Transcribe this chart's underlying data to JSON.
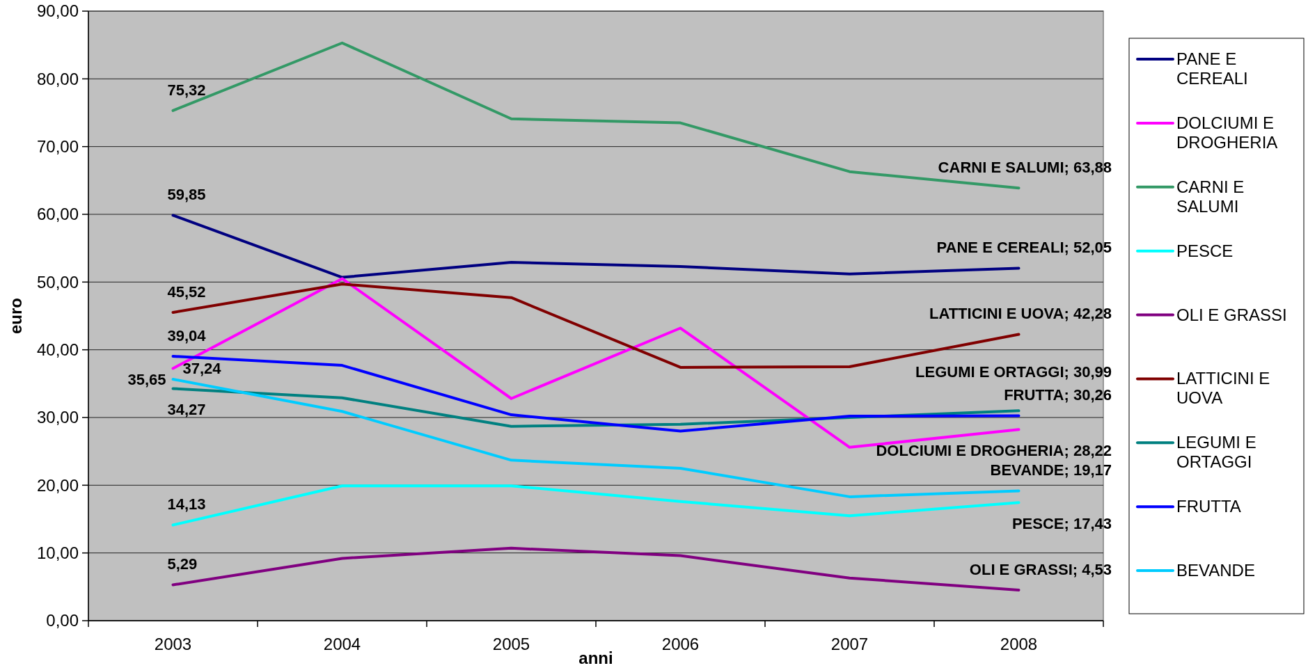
{
  "chart_data": {
    "type": "line",
    "xlabel": "anni",
    "ylabel": "euro",
    "categories": [
      "2003",
      "2004",
      "2005",
      "2006",
      "2007",
      "2008"
    ],
    "ylim": [
      0,
      90
    ],
    "yticks": [
      {
        "value": 0,
        "label": "0,00"
      },
      {
        "value": 10,
        "label": "10,00"
      },
      {
        "value": 20,
        "label": "20,00"
      },
      {
        "value": 30,
        "label": "30,00"
      },
      {
        "value": 40,
        "label": "40,00"
      },
      {
        "value": 50,
        "label": "50,00"
      },
      {
        "value": 60,
        "label": "60,00"
      },
      {
        "value": 70,
        "label": "70,00"
      },
      {
        "value": 80,
        "label": "80,00"
      },
      {
        "value": 90,
        "label": "90,00"
      }
    ],
    "grid": "y",
    "legend": "right",
    "series": [
      {
        "name": "PANE E CEREALI",
        "color": "#000080",
        "values": [
          59.85,
          50.7,
          52.9,
          52.3,
          51.2,
          52.05
        ],
        "value_labels": [
          "59,85",
          null,
          null,
          null,
          null,
          "PANE E CEREALI; 52,05"
        ]
      },
      {
        "name": "DOLCIUMI E DROGHERIA",
        "color": "#ff00ff",
        "values": [
          37.24,
          50.5,
          32.8,
          43.2,
          25.6,
          28.22
        ],
        "value_labels": [
          "37,24",
          null,
          null,
          null,
          null,
          "DOLCIUMI E DROGHERIA; 28,22"
        ]
      },
      {
        "name": "CARNI E SALUMI",
        "color": "#339966",
        "values": [
          75.32,
          85.3,
          74.1,
          73.5,
          66.3,
          63.88
        ],
        "value_labels": [
          "75,32",
          null,
          null,
          null,
          null,
          "CARNI E SALUMI; 63,88"
        ]
      },
      {
        "name": "PESCE",
        "color": "#00ffff",
        "values": [
          14.13,
          19.9,
          19.9,
          17.6,
          15.5,
          17.43
        ],
        "value_labels": [
          "14,13",
          null,
          null,
          null,
          null,
          "PESCE; 17,43"
        ]
      },
      {
        "name": "OLI E GRASSI",
        "color": "#800080",
        "values": [
          5.29,
          9.2,
          10.7,
          9.6,
          6.3,
          4.53
        ],
        "value_labels": [
          "5,29",
          null,
          null,
          null,
          null,
          "OLI E GRASSI; 4,53"
        ]
      },
      {
        "name": "LATTICINI E UOVA",
        "color": "#800000",
        "values": [
          45.52,
          49.7,
          47.7,
          37.4,
          37.5,
          42.28
        ],
        "value_labels": [
          "45,52",
          null,
          null,
          null,
          null,
          "LATTICINI E UOVA; 42,28"
        ]
      },
      {
        "name": "LEGUMI E ORTAGGI",
        "color": "#008080",
        "values": [
          34.27,
          32.9,
          28.7,
          29.0,
          30.0,
          30.99
        ],
        "value_labels": [
          "34,27",
          null,
          null,
          null,
          null,
          "LEGUMI E ORTAGGI; 30,99"
        ]
      },
      {
        "name": "FRUTTA",
        "color": "#0000ff",
        "values": [
          39.04,
          37.7,
          30.4,
          28.0,
          30.2,
          30.26
        ],
        "value_labels": [
          "39,04",
          null,
          null,
          null,
          null,
          "FRUTTA; 30,26"
        ]
      },
      {
        "name": "BEVANDE",
        "color": "#00ccff",
        "values": [
          35.65,
          30.9,
          23.7,
          22.5,
          18.3,
          19.17
        ],
        "value_labels": [
          "35,65",
          null,
          null,
          null,
          null,
          "BEVANDE; 19,17"
        ]
      }
    ]
  }
}
